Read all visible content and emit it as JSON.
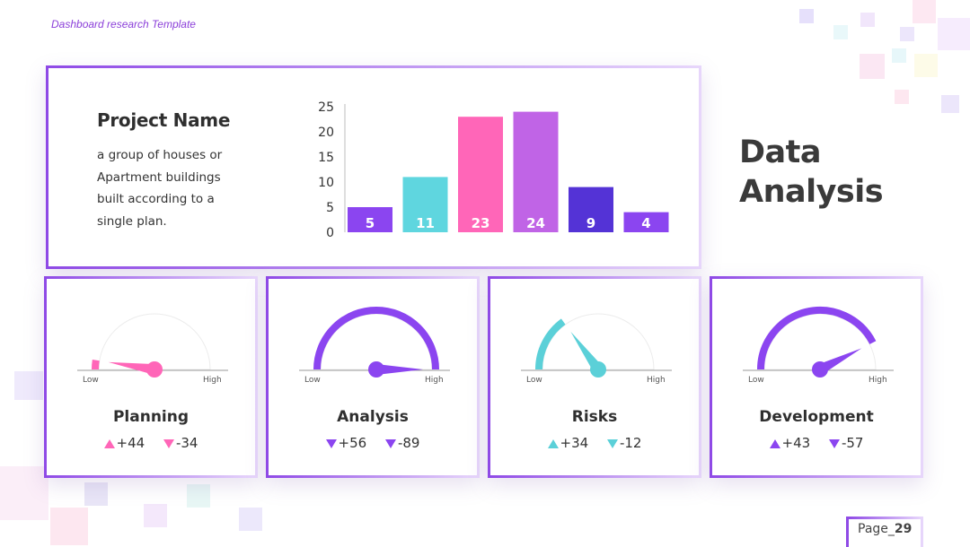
{
  "header": {
    "template_label": "Dashboard research Template"
  },
  "project": {
    "title": "Project Name",
    "description": "a group of houses or Apartment buildings built according to a single plan."
  },
  "title": {
    "line1": "Data",
    "line2": "Analysis"
  },
  "chart_data": {
    "type": "bar",
    "values": [
      5,
      11,
      23,
      24,
      9,
      4
    ],
    "colors": [
      "#8b45f0",
      "#5fd6df",
      "#ff66b8",
      "#c064e6",
      "#5433d6",
      "#8b45f0"
    ],
    "yticks": [
      0,
      5,
      10,
      15,
      20,
      25
    ],
    "ylim": [
      0,
      25
    ],
    "xlabel": "",
    "ylabel": "",
    "title": ""
  },
  "gauges": [
    {
      "name": "Planning",
      "low": "Low",
      "high": "High",
      "level": 0.05,
      "color": "#ff66b8",
      "up": "+44",
      "down": "-34"
    },
    {
      "name": "Analysis",
      "low": "Low",
      "high": "High",
      "level": 1.0,
      "color": "#8b45f0",
      "up": "+56",
      "down": "-89"
    },
    {
      "name": "Risks",
      "low": "Low",
      "high": "High",
      "level": 0.3,
      "color": "#5bd0d8",
      "up": "+34",
      "down": "-12"
    },
    {
      "name": "Development",
      "low": "Low",
      "high": "High",
      "level": 0.85,
      "color": "#8b45f0",
      "up": "+43",
      "down": "-57"
    }
  ],
  "page": {
    "label": "Page_",
    "number": "29"
  }
}
